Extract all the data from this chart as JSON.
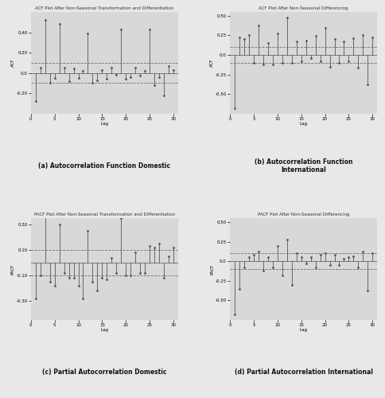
{
  "panel_a": {
    "title": "ACF Plot After Non-Seasonal Transformation and Differentiation",
    "xlabel": "Lag",
    "ylabel": "ACF",
    "ylim": [
      -0.4,
      0.6
    ],
    "yticks": [
      -0.2,
      0.0,
      0.2,
      0.4
    ],
    "ci": 0.1,
    "lags": [
      0,
      1,
      2,
      3,
      4,
      5,
      6,
      7,
      8,
      9,
      10,
      11,
      12,
      13,
      14,
      15,
      16,
      17,
      18,
      19,
      20,
      21,
      22,
      23,
      24,
      25,
      26,
      27,
      28,
      29,
      30
    ],
    "values": [
      1.0,
      -0.28,
      0.05,
      0.52,
      -0.1,
      -0.05,
      0.48,
      0.05,
      -0.08,
      0.04,
      -0.05,
      0.02,
      0.39,
      -0.1,
      -0.07,
      0.03,
      -0.06,
      0.05,
      -0.02,
      0.43,
      -0.06,
      -0.04,
      0.05,
      -0.03,
      0.02,
      0.43,
      -0.12,
      -0.04,
      -0.22,
      0.07,
      0.03
    ]
  },
  "panel_b": {
    "title": "ACF Plot After Non-Seasonal Differencing",
    "xlabel": "Lag",
    "ylabel": "ACF",
    "ylim": [
      -0.75,
      0.55
    ],
    "yticks": [
      -0.5,
      -0.25,
      0.0,
      0.25,
      0.5
    ],
    "ci": 0.1,
    "lags": [
      0,
      1,
      2,
      3,
      4,
      5,
      6,
      7,
      8,
      9,
      10,
      11,
      12,
      13,
      14,
      15,
      16,
      17,
      18,
      19,
      20,
      21,
      22,
      23,
      24,
      25,
      26,
      27,
      28,
      29,
      30
    ],
    "values": [
      1.0,
      -0.68,
      0.22,
      0.2,
      0.25,
      -0.1,
      0.38,
      -0.12,
      0.15,
      -0.12,
      0.28,
      -0.1,
      0.48,
      -0.1,
      0.17,
      -0.08,
      0.18,
      -0.04,
      0.24,
      -0.08,
      0.35,
      -0.15,
      0.2,
      -0.1,
      0.17,
      -0.08,
      0.21,
      -0.16,
      0.25,
      -0.38,
      0.22
    ]
  },
  "panel_c": {
    "title": "PACF Plot After Non-Seasonal Transformation and Differentiation",
    "xlabel": "Lag",
    "ylabel": "PACF",
    "ylim": [
      -0.45,
      0.35
    ],
    "yticks": [
      -0.3,
      -0.1,
      0.1,
      0.3
    ],
    "ci": 0.1,
    "lags": [
      1,
      2,
      3,
      4,
      5,
      6,
      7,
      8,
      9,
      10,
      11,
      12,
      13,
      14,
      15,
      16,
      17,
      18,
      19,
      20,
      21,
      22,
      23,
      24,
      25,
      26,
      27,
      28,
      29,
      30
    ],
    "values": [
      -0.28,
      -0.1,
      0.43,
      -0.15,
      -0.18,
      0.3,
      -0.08,
      -0.12,
      -0.12,
      -0.18,
      -0.28,
      0.25,
      -0.15,
      -0.22,
      -0.12,
      -0.13,
      0.04,
      -0.08,
      0.35,
      -0.1,
      -0.1,
      0.08,
      -0.08,
      -0.08,
      0.13,
      0.12,
      0.15,
      -0.12,
      0.05,
      0.12
    ]
  },
  "panel_d": {
    "title": "PACF Plot After Non-Seasonal Differencing",
    "xlabel": "Lag",
    "ylabel": "PACF",
    "ylim": [
      -0.75,
      0.55
    ],
    "yticks": [
      -0.5,
      -0.25,
      0.0,
      0.25,
      0.5
    ],
    "ci": 0.1,
    "lags": [
      1,
      2,
      3,
      4,
      5,
      6,
      7,
      8,
      9,
      10,
      11,
      12,
      13,
      14,
      15,
      16,
      17,
      18,
      19,
      20,
      21,
      22,
      23,
      24,
      25,
      26,
      27,
      28,
      29,
      30
    ],
    "values": [
      -0.68,
      -0.35,
      -0.08,
      0.05,
      0.08,
      0.12,
      -0.12,
      0.05,
      -0.08,
      0.2,
      -0.18,
      0.28,
      -0.3,
      0.1,
      0.05,
      -0.03,
      0.05,
      -0.08,
      0.08,
      0.1,
      -0.05,
      0.08,
      -0.05,
      0.03,
      0.05,
      0.06,
      -0.08,
      0.12,
      -0.38,
      0.1
    ]
  },
  "caption_a": "(a) Autocorrelation Function Domestic",
  "caption_b": "(b) Autocorrelation Function\nInternational",
  "caption_c": "(c) Partial Autocorrelation Domestic",
  "caption_d": "(d) Partial Autocorrelation International",
  "bg_color": "#e8e8e8",
  "plot_bg_color": "#d8d8d8",
  "bar_color": "#555555",
  "ci_color": "#555555",
  "ci_linestyle": "--"
}
